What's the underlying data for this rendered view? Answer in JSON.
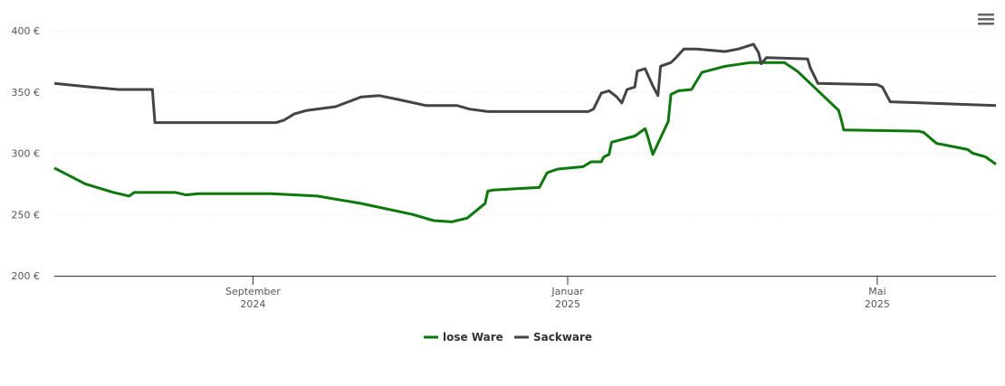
{
  "chart_data": {
    "type": "line",
    "xlim": [
      "2024-06-16",
      "2025-06-16"
    ],
    "xticks": [
      {
        "value": "2024-09-01",
        "label": [
          "September",
          "2024"
        ]
      },
      {
        "value": "2025-01-01",
        "label": [
          "Januar",
          "2025"
        ]
      },
      {
        "value": "2025-05-01",
        "label": [
          "Mai",
          "2025"
        ]
      }
    ],
    "ylim": [
      200,
      400
    ],
    "yticks": [
      {
        "value": 200,
        "label": "200 €"
      },
      {
        "value": 250,
        "label": "250 €"
      },
      {
        "value": 300,
        "label": "300 €"
      },
      {
        "value": 350,
        "label": "350 €"
      },
      {
        "value": 400,
        "label": "400 €"
      }
    ],
    "grid": true,
    "legend": "bottom",
    "series": [
      {
        "name": "lose Ware",
        "color": "#0a7a0a",
        "x": [
          "2024-06-16",
          "2024-06-28",
          "2024-07-09",
          "2024-07-15",
          "2024-07-17",
          "2024-08-02",
          "2024-08-06",
          "2024-08-11",
          "2024-09-08",
          "2024-09-26",
          "2024-10-13",
          "2024-11-02",
          "2024-11-10",
          "2024-11-17",
          "2024-11-23",
          "2024-11-30",
          "2024-12-01",
          "2024-12-03",
          "2024-12-12",
          "2024-12-21",
          "2024-12-24",
          "2024-12-28",
          "2025-01-07",
          "2025-01-10",
          "2025-01-14",
          "2025-01-15",
          "2025-01-17",
          "2025-01-18",
          "2025-01-27",
          "2025-01-31",
          "2025-02-01",
          "2025-02-03",
          "2025-02-09",
          "2025-02-10",
          "2025-02-13",
          "2025-02-18",
          "2025-02-22",
          "2025-03-03",
          "2025-03-13",
          "2025-03-26",
          "2025-03-31",
          "2025-04-10",
          "2025-04-16",
          "2025-04-17",
          "2025-04-18",
          "2025-05-17",
          "2025-05-19",
          "2025-05-24",
          "2025-05-29",
          "2025-06-05",
          "2025-06-07",
          "2025-06-12",
          "2025-06-16"
        ],
        "values": [
          288,
          275,
          268,
          265,
          268,
          268,
          266,
          267,
          267,
          265,
          259,
          250,
          245,
          244,
          247,
          259,
          269,
          270,
          271,
          272,
          284,
          287,
          289,
          293,
          293,
          297,
          299,
          309,
          314,
          320,
          314,
          299,
          326,
          348,
          351,
          352,
          366,
          371,
          374,
          374,
          367,
          347,
          335,
          328,
          319,
          318,
          317,
          308,
          306,
          303,
          300,
          297,
          291
        ]
      },
      {
        "name": "Sackware",
        "color": "#444444",
        "x": [
          "2024-06-16",
          "2024-06-30",
          "2024-07-11",
          "2024-07-24",
          "2024-07-25",
          "2024-09-10",
          "2024-09-13",
          "2024-09-17",
          "2024-09-22",
          "2024-10-03",
          "2024-10-13",
          "2024-10-20",
          "2024-10-27",
          "2024-11-07",
          "2024-11-19",
          "2024-11-24",
          "2024-12-01",
          "2025-01-09",
          "2025-01-11",
          "2025-01-14",
          "2025-01-17",
          "2025-01-20",
          "2025-01-22",
          "2025-01-24",
          "2025-01-27",
          "2025-01-28",
          "2025-01-31",
          "2025-02-03",
          "2025-02-05",
          "2025-02-06",
          "2025-02-10",
          "2025-02-12",
          "2025-02-15",
          "2025-02-20",
          "2025-03-03",
          "2025-03-08",
          "2025-03-14",
          "2025-03-16",
          "2025-03-17",
          "2025-03-19",
          "2025-04-04",
          "2025-04-05",
          "2025-04-08",
          "2025-05-01",
          "2025-05-03",
          "2025-05-06",
          "2025-06-16"
        ],
        "values": [
          357,
          354,
          352,
          352,
          325,
          325,
          327,
          332,
          335,
          338,
          346,
          347,
          344,
          339,
          339,
          336,
          334,
          334,
          336,
          349,
          351,
          346,
          341,
          352,
          354,
          367,
          369,
          355,
          347,
          371,
          374,
          378,
          385,
          385,
          383,
          385,
          389,
          382,
          373,
          378,
          377,
          370,
          357,
          356,
          354,
          342,
          339
        ]
      }
    ]
  }
}
